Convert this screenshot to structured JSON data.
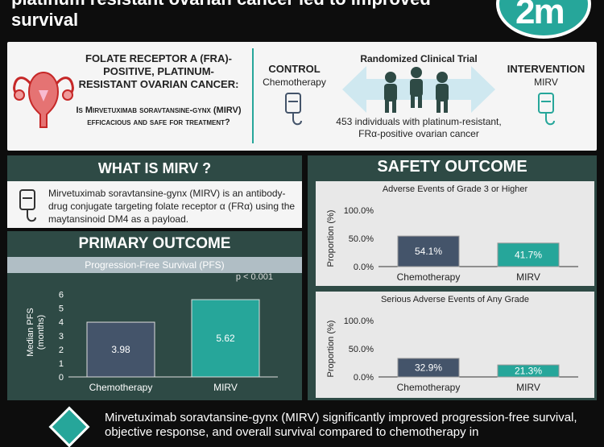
{
  "title": "platinum resistant ovarian cancer led to improved\nsurvival",
  "logo_text": "2m",
  "pico": {
    "title": "FOLATE RECEPTOR A (FRA)-POSITIVE, PLATINUM-RESISTANT OVARIAN CANCER:",
    "question": "Is Mirvetuximab soravtansine-gynx (MIRV) efficacious and safe for treatment?"
  },
  "design": {
    "control_label": "CONTROL",
    "control_sub": "Chemotherapy",
    "intervention_label": "INTERVENTION",
    "intervention_sub": "MIRV",
    "rct_label": "Randomized Clinical Trial",
    "rct_desc": "453 individuals with platinum-resistant, FRα-positive ovarian cancer"
  },
  "what_is": {
    "heading": "WHAT IS MIRV ?",
    "text": "Mirvetuximab soravtansine-gynx (MIRV) is an antibody-drug conjugate targeting folate receptor α (FRα) using the maytansinoid DM4 as a payload."
  },
  "primary": {
    "heading": "PRIMARY OUTCOME",
    "subtitle": "Progression-Free Survival (PFS)"
  },
  "safety": {
    "heading": "SAFETY OUTCOME",
    "chart1_title": "Adverse Events of Grade 3 or Higher",
    "chart2_title": "Serious Adverse Events of Any Grade"
  },
  "conclusion": "Mirvetuximab soravtansine-gynx (MIRV) significantly improved progression-free survival, objective response, and overall survival compared to chemotherapy in",
  "colors": {
    "accent": "#26a69a",
    "dark": "#2e4a45",
    "chemo_bar": "#44546a"
  },
  "chart_data": [
    {
      "type": "bar",
      "categories": [
        "Chemotherapy",
        "MIRV"
      ],
      "values": [
        3.98,
        5.62
      ],
      "value_labels": [
        "3.98",
        "5.62"
      ],
      "ylabel": "Median PFS\n(months)",
      "yticks": [
        "0",
        "1",
        "2",
        "3",
        "4",
        "5",
        "6"
      ],
      "ylim": [
        0,
        6.5
      ],
      "annotation": "p < 0.001"
    },
    {
      "type": "bar",
      "categories": [
        "Chemotherapy",
        "MIRV"
      ],
      "values": [
        54.1,
        41.7
      ],
      "value_labels": [
        "54.1%",
        "41.7%"
      ],
      "title": "Adverse Events of Grade 3 or Higher",
      "ylabel": "Proportion (%)",
      "yticks": [
        "0.0%",
        "50.0%",
        "100.0%"
      ],
      "ylim": [
        0,
        100
      ]
    },
    {
      "type": "bar",
      "categories": [
        "Chemotherapy",
        "MIRV"
      ],
      "values": [
        32.9,
        21.3
      ],
      "value_labels": [
        "32.9%",
        "21.3%"
      ],
      "title": "Serious Adverse Events of Any Grade",
      "ylabel": "Proportion (%)",
      "yticks": [
        "0.0%",
        "50.0%",
        "100.0%"
      ],
      "ylim": [
        0,
        100
      ]
    }
  ]
}
